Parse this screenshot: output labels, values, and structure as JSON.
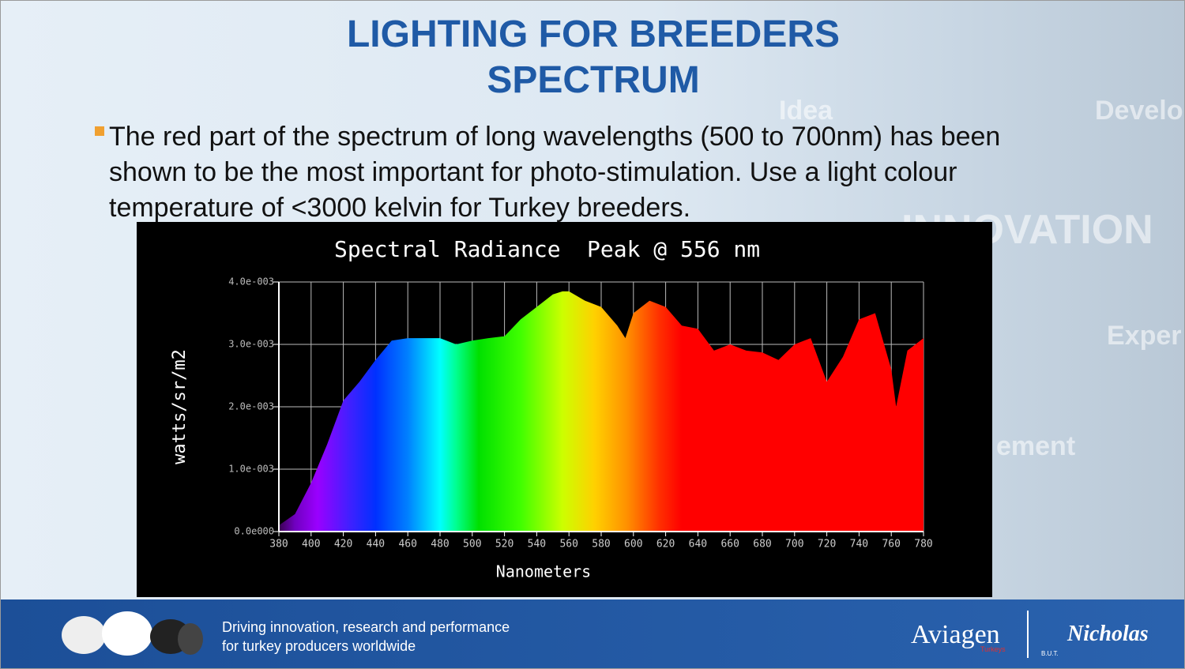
{
  "slide": {
    "title_lines": [
      "LIGHTING FOR BREEDERS",
      "SPECTRUM"
    ],
    "bullet": "The red part of the spectrum of long wavelengths (500 to 700nm) has been shown to be the most important for photo-stimulation. Use a light colour temperature of <3000 kelvin for Turkey breeders.",
    "background_words": [
      "Idea",
      "Develo",
      "INNOVATION",
      "Exper",
      "ement"
    ],
    "footer_lines": [
      "Driving innovation, research and performance",
      "for turkey producers worldwide"
    ],
    "logo_aviagen": "Aviagen",
    "logo_aviagen_sub": "Turkeys",
    "logo_nicholas": "Nicholas",
    "logo_but": "B.U.T."
  },
  "chart_data": {
    "type": "area",
    "title": "Spectral Radiance",
    "subtitle": "Peak @ 556 nm",
    "x_label": "Nanometers",
    "y_label": "watts/sr/m2",
    "x": [
      380,
      390,
      400,
      410,
      420,
      430,
      440,
      450,
      460,
      470,
      480,
      490,
      500,
      510,
      520,
      530,
      540,
      550,
      556,
      560,
      570,
      580,
      590,
      595,
      600,
      610,
      620,
      630,
      640,
      650,
      660,
      670,
      680,
      690,
      700,
      710,
      720,
      730,
      740,
      750,
      760,
      763,
      770,
      780
    ],
    "values": [
      0.0001,
      0.00028,
      0.00078,
      0.0014,
      0.0021,
      0.0024,
      0.00275,
      0.00306,
      0.0031,
      0.0031,
      0.0031,
      0.003,
      0.00306,
      0.0031,
      0.00313,
      0.0034,
      0.0036,
      0.0038,
      0.00385,
      0.00385,
      0.0037,
      0.0036,
      0.0033,
      0.0031,
      0.0035,
      0.0037,
      0.0036,
      0.0033,
      0.00325,
      0.0029,
      0.003,
      0.0029,
      0.00287,
      0.00275,
      0.003,
      0.0031,
      0.0024,
      0.0028,
      0.0034,
      0.0035,
      0.0026,
      0.002,
      0.0029,
      0.0031
    ],
    "xlim": [
      380,
      780
    ],
    "xticks": [
      380,
      400,
      420,
      440,
      460,
      480,
      500,
      520,
      540,
      560,
      580,
      600,
      620,
      640,
      660,
      680,
      700,
      720,
      740,
      760,
      780
    ],
    "ylim": [
      0,
      0.004
    ],
    "yticks": [
      {
        "value": 0,
        "label": "0.0e000"
      },
      {
        "value": 0.001,
        "label": "1.0e-003"
      },
      {
        "value": 0.002,
        "label": "2.0e-003"
      },
      {
        "value": 0.003,
        "label": "3.0e-003"
      },
      {
        "value": 0.004,
        "label": "4.0e-003"
      }
    ],
    "grid": true
  }
}
